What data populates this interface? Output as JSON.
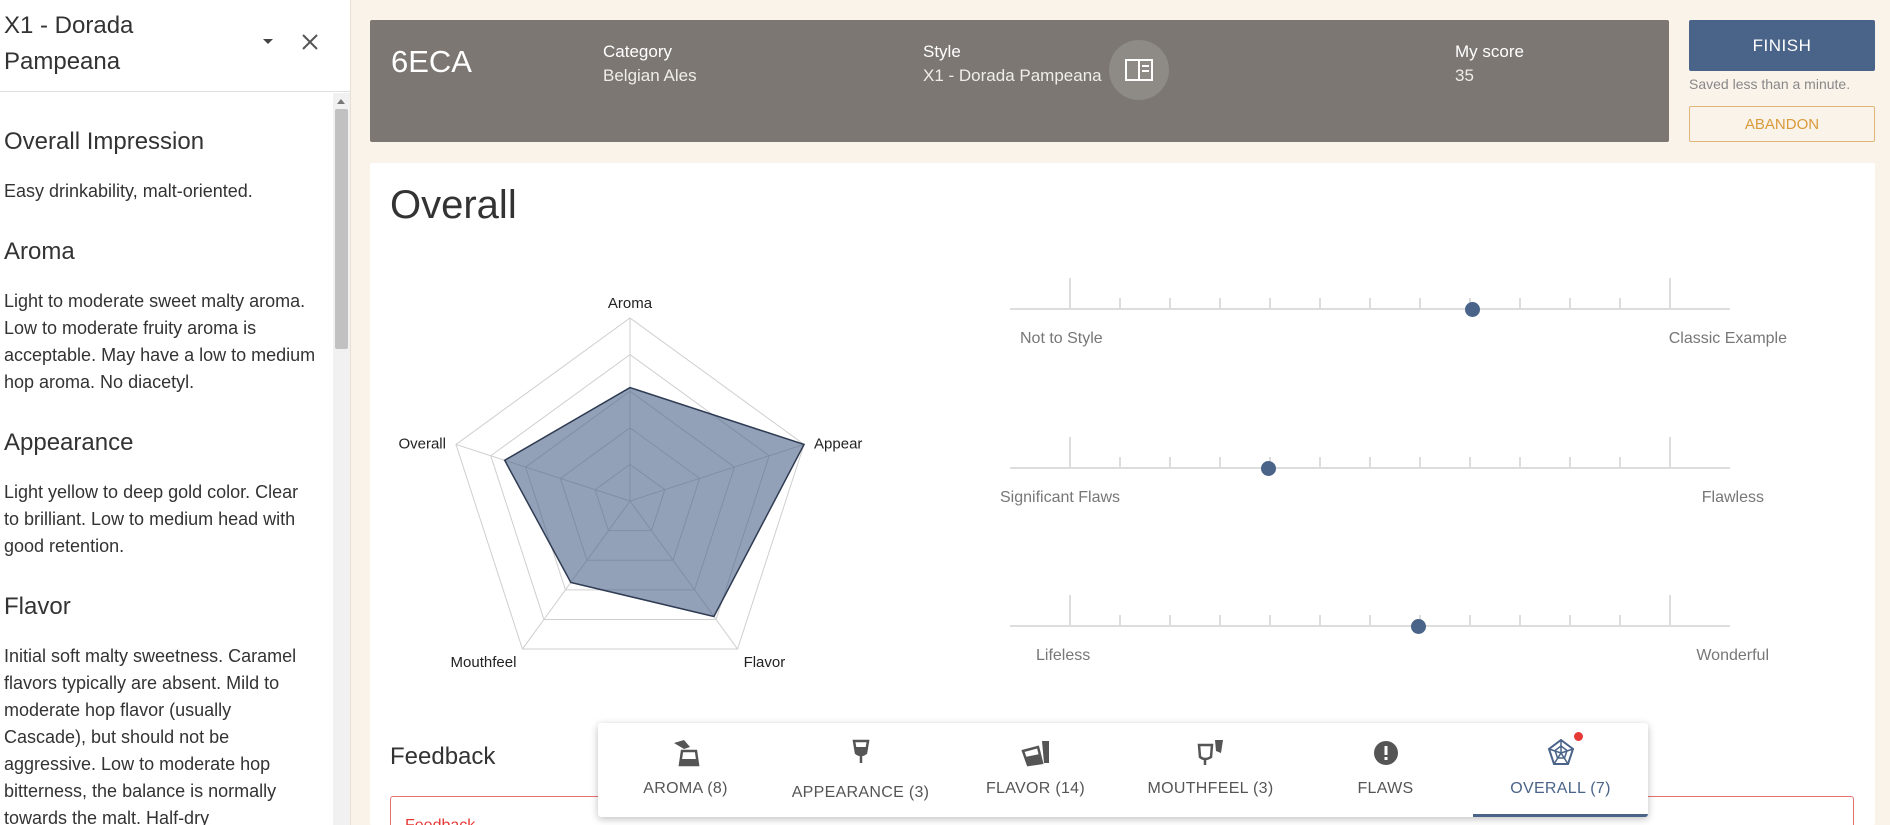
{
  "sidebar": {
    "title": "X1 - Dorada Pampeana",
    "sections": [
      {
        "heading": "Overall Impression",
        "text": "Easy drinkability, malt-oriented."
      },
      {
        "heading": "Aroma",
        "text": "Light to moderate sweet malty aroma. Low to moderate fruity aroma is acceptable. May have a low to medium hop aroma. No diacetyl."
      },
      {
        "heading": "Appearance",
        "text": "Light yellow to deep gold color. Clear to brilliant. Low to medium head with good retention."
      },
      {
        "heading": "Flavor",
        "text": "Initial soft malty sweetness. Caramel flavors typically are absent. Mild to moderate hop flavor (usually Cascade), but should not be aggressive. Low to moderate hop bitterness, the balance is normally towards the malt. Half-dry"
      }
    ]
  },
  "infobar": {
    "beer_id": "6ECA",
    "category_label": "Category",
    "category_value": "Belgian Ales",
    "style_label": "Style",
    "style_value": "X1 - Dorada Pampeana",
    "score_label": "My score",
    "score_value": "35"
  },
  "actions": {
    "finish_label": "FINISH",
    "saved_text": "Saved less than a minute.",
    "abandon_label": "ABANDON"
  },
  "main": {
    "title": "Overall",
    "radar": {
      "axes": [
        "Aroma",
        "Appear",
        "Flavor",
        "Mouthfeel",
        "Overall"
      ],
      "values": [
        0.62,
        1.0,
        0.78,
        0.55,
        0.72
      ]
    },
    "sliders": [
      {
        "left_label": "Not to Style",
        "right_label": "Classic Example",
        "value": 0.67
      },
      {
        "left_label": "Significant Flaws",
        "right_label": "Flawless",
        "value": 0.33
      },
      {
        "left_label": "Lifeless",
        "right_label": "Wonderful",
        "value": 0.58
      }
    ],
    "feedback_title": "Feedback",
    "feedback_placeholder": "Feedback"
  },
  "tabs": [
    {
      "label": "AROMA (8)",
      "icon": "aroma-icon"
    },
    {
      "label": "APPEARANCE (3)",
      "icon": "appearance-icon"
    },
    {
      "label": "FLAVOR (14)",
      "icon": "flavor-icon"
    },
    {
      "label": "MOUTHFEEL (3)",
      "icon": "mouthfeel-icon"
    },
    {
      "label": "FLAWS",
      "icon": "flaws-icon"
    },
    {
      "label": "OVERALL (7)",
      "icon": "overall-icon",
      "active": true
    }
  ],
  "colors": {
    "accent": "#4a6388",
    "infobar": "#7c7772",
    "abandon": "#d99a3a",
    "error": "#e53935"
  }
}
